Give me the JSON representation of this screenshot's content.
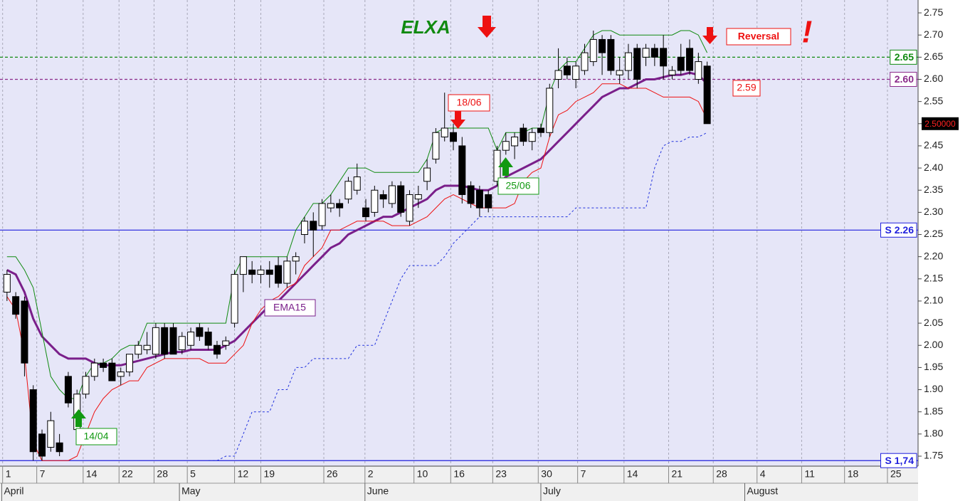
{
  "chart_data": {
    "type": "candlestick",
    "title": "ELXA",
    "ylim": [
      1.7275,
      2.779
    ],
    "xlim": [
      -0.8,
      104.1
    ],
    "yticks": [
      2.75,
      {
        "value": 2.7,
        "label": "2.70"
      },
      2.65,
      {
        "value": 2.6,
        "label": "2.60"
      },
      2.55,
      {
        "value": 2.5,
        "label": "2.50"
      },
      2.45,
      {
        "value": 2.4,
        "label": "2.40"
      },
      2.35,
      {
        "value": 2.3,
        "label": "2.30"
      },
      2.25,
      {
        "value": 2.2,
        "label": "2.20"
      },
      2.15,
      {
        "value": 2.1,
        "label": "2.10"
      },
      2.05,
      {
        "value": 2.0,
        "label": "2.00"
      },
      1.95,
      {
        "value": 1.9,
        "label": "1.90"
      },
      1.85,
      {
        "value": 1.8,
        "label": "1.80"
      },
      1.75
    ],
    "xticks": [
      {
        "value": -0.5,
        "label": "1"
      },
      {
        "value": 3.4,
        "label": "7"
      },
      {
        "value": 8.7,
        "label": "14"
      },
      {
        "value": 12.8,
        "label": "22"
      },
      {
        "value": 16.8,
        "label": "28"
      },
      {
        "value": 20.6,
        "label": "5"
      },
      {
        "value": 26.0,
        "label": "12"
      },
      {
        "value": 29.0,
        "label": "19"
      },
      {
        "value": 36.2,
        "label": "26"
      },
      {
        "value": 40.9,
        "label": "2"
      },
      {
        "value": 46.5,
        "label": "10"
      },
      {
        "value": 50.7,
        "label": "16"
      },
      {
        "value": 55.5,
        "label": "23"
      },
      {
        "value": 60.7,
        "label": "30"
      },
      {
        "value": 65.2,
        "label": "7"
      },
      {
        "value": 70.5,
        "label": "14"
      },
      {
        "value": 75.6,
        "label": "21"
      },
      {
        "value": 80.7,
        "label": "28"
      },
      {
        "value": 85.7,
        "label": "4"
      },
      {
        "value": 90.8,
        "label": "11"
      },
      {
        "value": 95.7,
        "label": "18"
      },
      {
        "value": 100.6,
        "label": "25"
      }
    ],
    "month_ticks": [
      {
        "value": -0.6,
        "label": "April"
      },
      {
        "value": 19.7,
        "label": "May"
      },
      {
        "value": 40.9,
        "label": "June"
      },
      {
        "value": 61.0,
        "label": "July"
      },
      {
        "value": 84.3,
        "label": "August"
      }
    ],
    "candles": [
      [
        2.12,
        2.17,
        2.1,
        2.16
      ],
      [
        2.11,
        2.12,
        2.06,
        2.07
      ],
      [
        2.1,
        2.11,
        1.93,
        1.96
      ],
      [
        1.9,
        1.91,
        1.74,
        1.76
      ],
      [
        1.8,
        1.81,
        1.74,
        1.75
      ],
      [
        1.77,
        1.85,
        1.76,
        1.83
      ],
      [
        1.78,
        1.8,
        1.75,
        1.76
      ],
      [
        1.93,
        1.94,
        1.86,
        1.87
      ],
      [
        1.81,
        1.9,
        1.8,
        1.89
      ],
      [
        1.89,
        1.94,
        1.88,
        1.93
      ],
      [
        1.93,
        1.97,
        1.92,
        1.96
      ],
      [
        1.96,
        1.97,
        1.94,
        1.95
      ],
      [
        1.96,
        1.97,
        1.92,
        1.92
      ],
      [
        1.93,
        1.95,
        1.91,
        1.94
      ],
      [
        1.94,
        1.98,
        1.93,
        1.98
      ],
      [
        1.98,
        2.01,
        1.97,
        2.0
      ],
      [
        1.99,
        2.03,
        1.98,
        2.0
      ],
      [
        1.98,
        2.05,
        1.97,
        2.04
      ],
      [
        2.04,
        2.05,
        1.97,
        1.98
      ],
      [
        2.04,
        2.05,
        1.98,
        1.98
      ],
      [
        1.99,
        2.03,
        1.98,
        2.02
      ],
      [
        2.0,
        2.04,
        1.99,
        2.03
      ],
      [
        2.04,
        2.05,
        2.01,
        2.02
      ],
      [
        2.03,
        2.04,
        1.99,
        2.0
      ],
      [
        2.0,
        2.01,
        1.97,
        1.98
      ],
      [
        2.0,
        2.02,
        1.99,
        2.01
      ],
      [
        2.05,
        2.17,
        2.04,
        2.16
      ],
      [
        2.16,
        2.2,
        2.12,
        2.2
      ],
      [
        2.17,
        2.19,
        2.14,
        2.16
      ],
      [
        2.16,
        2.18,
        2.14,
        2.17
      ],
      [
        2.17,
        2.19,
        2.13,
        2.16
      ],
      [
        2.18,
        2.2,
        2.13,
        2.14
      ],
      [
        2.14,
        2.2,
        2.13,
        2.19
      ],
      [
        2.19,
        2.21,
        2.16,
        2.2
      ],
      [
        2.25,
        2.29,
        2.23,
        2.28
      ],
      [
        2.28,
        2.3,
        2.2,
        2.26
      ],
      [
        2.27,
        2.33,
        2.26,
        2.32
      ],
      [
        2.31,
        2.34,
        2.3,
        2.32
      ],
      [
        2.32,
        2.33,
        2.29,
        2.31
      ],
      [
        2.33,
        2.38,
        2.32,
        2.37
      ],
      [
        2.35,
        2.41,
        2.34,
        2.38
      ],
      [
        2.31,
        2.33,
        2.28,
        2.29
      ],
      [
        2.3,
        2.36,
        2.29,
        2.35
      ],
      [
        2.34,
        2.35,
        2.31,
        2.33
      ],
      [
        2.32,
        2.37,
        2.31,
        2.36
      ],
      [
        2.36,
        2.37,
        2.29,
        2.3
      ],
      [
        2.28,
        2.35,
        2.27,
        2.34
      ],
      [
        2.33,
        2.36,
        2.31,
        2.34
      ],
      [
        2.37,
        2.42,
        2.35,
        2.4
      ],
      [
        2.42,
        2.49,
        2.41,
        2.48
      ],
      [
        2.47,
        2.57,
        2.46,
        2.49
      ],
      [
        2.48,
        2.5,
        2.44,
        2.46
      ],
      [
        2.45,
        2.47,
        2.32,
        2.34
      ],
      [
        2.36,
        2.37,
        2.31,
        2.32
      ],
      [
        2.35,
        2.36,
        2.29,
        2.31
      ],
      [
        2.34,
        2.35,
        2.3,
        2.31
      ],
      [
        2.37,
        2.45,
        2.36,
        2.44
      ],
      [
        2.44,
        2.48,
        2.43,
        2.46
      ],
      [
        2.45,
        2.48,
        2.42,
        2.47
      ],
      [
        2.49,
        2.5,
        2.45,
        2.46
      ],
      [
        2.46,
        2.49,
        2.44,
        2.48
      ],
      [
        2.49,
        2.5,
        2.47,
        2.48
      ],
      [
        2.48,
        2.59,
        2.47,
        2.58
      ],
      [
        2.6,
        2.67,
        2.58,
        2.62
      ],
      [
        2.63,
        2.65,
        2.6,
        2.61
      ],
      [
        2.6,
        2.64,
        2.58,
        2.63
      ],
      [
        2.62,
        2.68,
        2.61,
        2.66
      ],
      [
        2.64,
        2.71,
        2.63,
        2.69
      ],
      [
        2.69,
        2.7,
        2.61,
        2.66
      ],
      [
        2.69,
        2.7,
        2.61,
        2.62
      ],
      [
        2.61,
        2.65,
        2.59,
        2.62
      ],
      [
        2.62,
        2.68,
        2.6,
        2.66
      ],
      [
        2.67,
        2.68,
        2.58,
        2.6
      ],
      [
        2.65,
        2.68,
        2.63,
        2.67
      ],
      [
        2.67,
        2.68,
        2.63,
        2.65
      ],
      [
        2.67,
        2.7,
        2.6,
        2.63
      ],
      [
        2.61,
        2.63,
        2.6,
        2.62
      ],
      [
        2.65,
        2.68,
        2.61,
        2.62
      ],
      [
        2.67,
        2.69,
        2.61,
        2.62
      ],
      [
        2.6,
        2.66,
        2.59,
        2.64
      ],
      [
        2.63,
        2.64,
        2.5,
        2.5
      ]
    ],
    "series": [
      {
        "name": "EMA15",
        "color": "#7a1f8a",
        "width": 3,
        "values": [
          2.17,
          2.16,
          2.12,
          2.06,
          2.02,
          2.0,
          1.98,
          1.97,
          1.97,
          1.97,
          1.96,
          1.955,
          1.955,
          1.955,
          1.96,
          1.965,
          1.97,
          1.975,
          1.98,
          1.985,
          1.985,
          1.99,
          1.99,
          1.99,
          1.99,
          2.0,
          2.01,
          2.03,
          2.05,
          2.07,
          2.09,
          2.1,
          2.12,
          2.14,
          2.16,
          2.18,
          2.2,
          2.22,
          2.23,
          2.25,
          2.26,
          2.27,
          2.28,
          2.29,
          2.29,
          2.3,
          2.31,
          2.32,
          2.33,
          2.35,
          2.36,
          2.36,
          2.36,
          2.355,
          2.35,
          2.35,
          2.36,
          2.38,
          2.39,
          2.4,
          2.41,
          2.42,
          2.44,
          2.46,
          2.48,
          2.5,
          2.52,
          2.54,
          2.56,
          2.57,
          2.58,
          2.58,
          2.59,
          2.6,
          2.6,
          2.605,
          2.61,
          2.61,
          2.615,
          2.61,
          2.59
        ]
      },
      {
        "color": "#108a10",
        "width": 1,
        "values": [
          2.2,
          2.2,
          2.17,
          2.13,
          2.03,
          1.93,
          1.9,
          1.88,
          1.88,
          1.93,
          1.96,
          1.96,
          1.97,
          1.99,
          2.0,
          2.0,
          2.05,
          2.05,
          2.05,
          2.05,
          2.05,
          2.05,
          2.05,
          2.05,
          2.05,
          2.05,
          2.16,
          2.2,
          2.2,
          2.2,
          2.2,
          2.2,
          2.2,
          2.26,
          2.29,
          2.32,
          2.32,
          2.34,
          2.37,
          2.4,
          2.4,
          2.4,
          2.39,
          2.39,
          2.39,
          2.39,
          2.39,
          2.39,
          2.42,
          2.48,
          2.49,
          2.49,
          2.49,
          2.49,
          2.49,
          2.49,
          2.44,
          2.48,
          2.48,
          2.48,
          2.49,
          2.49,
          2.57,
          2.62,
          2.64,
          2.64,
          2.67,
          2.7,
          2.71,
          2.71,
          2.7,
          2.7,
          2.7,
          2.7,
          2.7,
          2.7,
          2.7,
          2.71,
          2.71,
          2.7,
          2.66
        ]
      },
      {
        "color": "#ee1111",
        "width": 1,
        "values": [
          2.11,
          2.08,
          1.98,
          1.78,
          1.74,
          1.74,
          1.74,
          1.74,
          1.75,
          1.8,
          1.85,
          1.88,
          1.9,
          1.91,
          1.92,
          1.92,
          1.95,
          1.96,
          1.97,
          1.97,
          1.97,
          1.97,
          1.97,
          1.96,
          1.96,
          1.96,
          1.98,
          2.0,
          2.05,
          2.08,
          2.1,
          2.11,
          2.13,
          2.14,
          2.18,
          2.2,
          2.22,
          2.26,
          2.26,
          2.27,
          2.28,
          2.28,
          2.28,
          2.28,
          2.27,
          2.27,
          2.27,
          2.28,
          2.29,
          2.31,
          2.33,
          2.34,
          2.33,
          2.32,
          2.31,
          2.31,
          2.31,
          2.31,
          2.32,
          2.37,
          2.39,
          2.4,
          2.47,
          2.52,
          2.53,
          2.55,
          2.56,
          2.57,
          2.59,
          2.59,
          2.59,
          2.58,
          2.58,
          2.58,
          2.57,
          2.56,
          2.56,
          2.56,
          2.56,
          2.55,
          2.51
        ]
      },
      {
        "color": "#2233dd",
        "width": 1,
        "dashed": true,
        "values": [
          null,
          null,
          null,
          null,
          null,
          null,
          null,
          null,
          null,
          null,
          null,
          null,
          null,
          null,
          null,
          null,
          null,
          null,
          null,
          null,
          null,
          null,
          null,
          1.74,
          1.74,
          1.75,
          1.75,
          1.8,
          1.85,
          1.85,
          1.85,
          1.9,
          1.9,
          1.95,
          1.95,
          1.97,
          1.97,
          1.97,
          1.97,
          1.97,
          2.0,
          2.0,
          2.0,
          2.05,
          2.1,
          2.15,
          2.18,
          2.18,
          2.18,
          2.18,
          2.2,
          2.23,
          2.25,
          2.27,
          2.29,
          2.29,
          2.29,
          2.29,
          2.29,
          2.29,
          2.29,
          2.29,
          2.29,
          2.29,
          2.29,
          2.31,
          2.31,
          2.31,
          2.31,
          2.31,
          2.31,
          2.31,
          2.31,
          2.31,
          2.4,
          2.45,
          2.46,
          2.46,
          2.47,
          2.47,
          2.48
        ]
      }
    ],
    "hlines": [
      {
        "value": 2.65,
        "color": "#108a10",
        "dashed": true
      },
      {
        "value": 2.6,
        "label": "2.60",
        "color": "#8a2a8a",
        "dashed": true
      },
      {
        "value": 2.26,
        "label": "S 2.26",
        "color": "#2020dd"
      },
      {
        "value": 1.74,
        "label": "S 1,74",
        "color": "#2020dd"
      }
    ],
    "stop_level": 2.59,
    "last_price": {
      "value": 2.5,
      "label": "2.50000"
    },
    "annotations": [
      "Reversal",
      "!",
      "18/06",
      "25/06",
      "14/04"
    ]
  }
}
